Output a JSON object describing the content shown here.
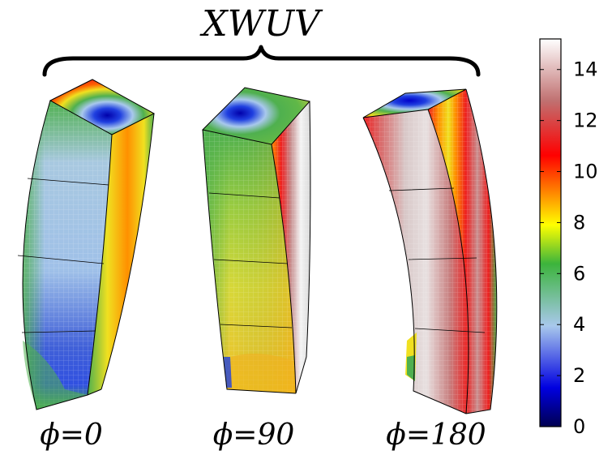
{
  "title": "XWUV",
  "panels": [
    {
      "label": "ϕ=0",
      "angle": 0
    },
    {
      "label": "ϕ=90",
      "angle": 90
    },
    {
      "label": "ϕ=180",
      "angle": 180
    }
  ],
  "colorbar": {
    "ticks": [
      "0",
      "2",
      "4",
      "6",
      "8",
      "10",
      "12",
      "14"
    ],
    "min": 0,
    "max": 15.2,
    "stops": [
      "#000050",
      "#0000e0",
      "#a8c8ec",
      "#3cb43c",
      "#ffff00",
      "#ff8c00",
      "#ff0000",
      "#c07070",
      "#ffffff"
    ]
  },
  "colors": {
    "blue_core": "#0000cc",
    "light_blue": "#a8c0e8",
    "green": "#4fb04f",
    "yellow": "#f0e020",
    "orange": "#ff9000",
    "red": "#ee2020",
    "grey_red": "#c89090",
    "white": "#f4f4f4"
  }
}
